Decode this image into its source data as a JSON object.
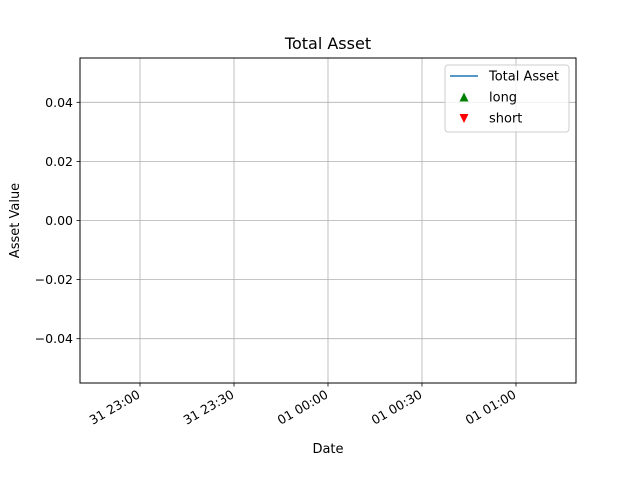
{
  "chart_data": {
    "type": "line",
    "title": "Total Asset",
    "xlabel": "Date",
    "ylabel": "Asset Value",
    "x_axis": {
      "scale": "date",
      "tick_labels": [
        "31 23:00",
        "31 23:30",
        "01 00:00",
        "01 00:30",
        "01 01:00"
      ],
      "tick_label_rotation_deg": 30
    },
    "y_axis": {
      "ylim": [
        -0.055,
        0.055
      ],
      "ticks": [
        0.04,
        0.02,
        0.0,
        -0.02,
        -0.04
      ],
      "tick_labels": [
        "0.04",
        "0.02",
        "0.00",
        "−0.02",
        "−0.04"
      ]
    },
    "grid": true,
    "legend_position": "top-right",
    "series": [
      {
        "name": "Total Asset",
        "kind": "line",
        "color": "#1f77b4",
        "values": []
      },
      {
        "name": "long",
        "kind": "marker",
        "marker": "triangle-up",
        "color": "#008000",
        "values": []
      },
      {
        "name": "short",
        "kind": "marker",
        "marker": "triangle-down",
        "color": "#ff0000",
        "values": []
      }
    ]
  }
}
